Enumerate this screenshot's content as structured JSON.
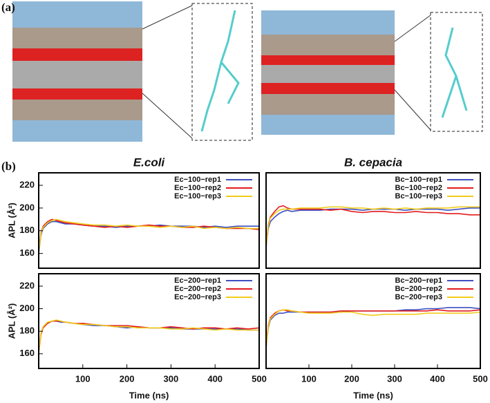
{
  "panel_labels": [
    "(a)",
    "(b)"
  ],
  "chart_data": [
    {
      "type": "line",
      "title": "E.coli",
      "ylabel": "APL (Å²)",
      "legend": "upper right",
      "x": [
        0,
        5,
        10,
        20,
        30,
        40,
        50,
        60,
        80,
        100,
        125,
        150,
        175,
        200,
        225,
        250,
        275,
        300,
        325,
        350,
        375,
        400,
        425,
        450,
        475,
        500
      ],
      "xlim": [
        0,
        500
      ],
      "ylim": [
        147,
        231
      ],
      "yticks": [
        160,
        180,
        200,
        220
      ],
      "series": [
        {
          "name": "Ec−100−rep1",
          "color": "#3d4fc0",
          "values": [
            160,
            176,
            182,
            186,
            188,
            188,
            187,
            186,
            186,
            185,
            184,
            184,
            183,
            184,
            184,
            184,
            185,
            184,
            184,
            184,
            183,
            184,
            183,
            184,
            184,
            184
          ]
        },
        {
          "name": "Ec−100−rep2",
          "color": "#e31a1c",
          "values": [
            162,
            178,
            184,
            188,
            190,
            189,
            188,
            187,
            186,
            185,
            184,
            183,
            184,
            183,
            184,
            185,
            184,
            184,
            183,
            183,
            184,
            183,
            182,
            182,
            182,
            181
          ]
        },
        {
          "name": "Ec−100−rep3",
          "color": "#f2cc1a",
          "values": [
            161,
            177,
            183,
            187,
            189,
            190,
            189,
            188,
            187,
            186,
            185,
            185,
            184,
            185,
            184,
            184,
            183,
            184,
            183,
            184,
            182,
            183,
            182,
            183,
            182,
            182
          ]
        }
      ]
    },
    {
      "type": "line",
      "title": "B. cepacia",
      "legend": "upper right",
      "x": [
        0,
        5,
        10,
        20,
        30,
        40,
        50,
        60,
        80,
        100,
        125,
        150,
        175,
        200,
        225,
        250,
        275,
        300,
        325,
        350,
        375,
        400,
        425,
        450,
        475,
        500
      ],
      "xlim": [
        0,
        500
      ],
      "ylim": [
        147,
        231
      ],
      "series": [
        {
          "name": "Bc−100−rep1",
          "color": "#3d4fc0",
          "values": [
            165,
            182,
            188,
            192,
            195,
            197,
            198,
            197,
            198,
            198,
            198,
            199,
            199,
            199,
            198,
            199,
            199,
            199,
            198,
            199,
            199,
            199,
            198,
            199,
            200,
            200
          ]
        },
        {
          "name": "Bc−100−rep2",
          "color": "#e31a1c",
          "values": [
            166,
            185,
            192,
            197,
            201,
            202,
            200,
            199,
            199,
            199,
            199,
            198,
            199,
            197,
            196,
            197,
            197,
            196,
            196,
            197,
            196,
            196,
            195,
            195,
            194,
            194
          ]
        },
        {
          "name": "Bc−100−rep3",
          "color": "#f2cc1a",
          "values": [
            165,
            184,
            191,
            195,
            198,
            199,
            199,
            199,
            200,
            200,
            200,
            201,
            201,
            200,
            200,
            199,
            200,
            199,
            200,
            199,
            200,
            200,
            200,
            201,
            201,
            201
          ]
        }
      ]
    },
    {
      "type": "line",
      "ylabel": "APL (Å²)",
      "xlabel": "Time (ns)",
      "legend": "upper right",
      "x": [
        0,
        5,
        10,
        20,
        30,
        40,
        50,
        60,
        80,
        100,
        125,
        150,
        175,
        200,
        225,
        250,
        275,
        300,
        325,
        350,
        375,
        400,
        425,
        450,
        475,
        500
      ],
      "xlim": [
        0,
        500
      ],
      "xticks": [
        100,
        200,
        300,
        400,
        500
      ],
      "ylim": [
        147,
        231
      ],
      "yticks": [
        160,
        180,
        200,
        220
      ],
      "series": [
        {
          "name": "Ec−200−rep1",
          "color": "#3d4fc0",
          "values": [
            162,
            178,
            184,
            187,
            189,
            189,
            188,
            188,
            187,
            186,
            185,
            185,
            184,
            183,
            184,
            183,
            183,
            183,
            182,
            182,
            182,
            182,
            182,
            182,
            181,
            181
          ]
        },
        {
          "name": "Ec−200−rep2",
          "color": "#e31a1c",
          "values": [
            161,
            177,
            183,
            187,
            189,
            189,
            189,
            188,
            187,
            187,
            186,
            185,
            185,
            185,
            184,
            183,
            183,
            184,
            183,
            182,
            183,
            183,
            182,
            183,
            182,
            183
          ]
        },
        {
          "name": "Ec−200−rep3",
          "color": "#f2cc1a",
          "values": [
            162,
            178,
            184,
            188,
            189,
            190,
            189,
            188,
            187,
            186,
            186,
            185,
            184,
            184,
            183,
            183,
            183,
            182,
            182,
            183,
            182,
            181,
            182,
            181,
            181,
            181
          ]
        }
      ]
    },
    {
      "type": "line",
      "xlabel": "Time (ns)",
      "legend": "upper right",
      "x": [
        0,
        5,
        10,
        20,
        30,
        40,
        50,
        60,
        80,
        100,
        125,
        150,
        175,
        200,
        225,
        250,
        275,
        300,
        325,
        350,
        375,
        400,
        425,
        450,
        475,
        500
      ],
      "xlim": [
        0,
        500
      ],
      "xticks": [
        100,
        200,
        300,
        400,
        500
      ],
      "ylim": [
        147,
        231
      ],
      "series": [
        {
          "name": "Bc−200−rep1",
          "color": "#3d4fc0",
          "values": [
            165,
            183,
            190,
            194,
            196,
            196,
            197,
            197,
            197,
            197,
            197,
            197,
            197,
            198,
            198,
            198,
            198,
            198,
            199,
            199,
            200,
            200,
            201,
            201,
            201,
            200
          ]
        },
        {
          "name": "Bc−200−rep2",
          "color": "#e31a1c",
          "values": [
            166,
            185,
            192,
            196,
            198,
            199,
            198,
            198,
            197,
            197,
            197,
            197,
            198,
            198,
            198,
            198,
            198,
            198,
            198,
            198,
            198,
            199,
            198,
            198,
            198,
            199
          ]
        },
        {
          "name": "Bc−200−rep3",
          "color": "#f2cc1a",
          "values": [
            165,
            184,
            191,
            195,
            198,
            199,
            199,
            198,
            197,
            196,
            196,
            196,
            197,
            197,
            195,
            194,
            195,
            195,
            195,
            195,
            196,
            196,
            196,
            196,
            196,
            197
          ]
        }
      ]
    }
  ]
}
